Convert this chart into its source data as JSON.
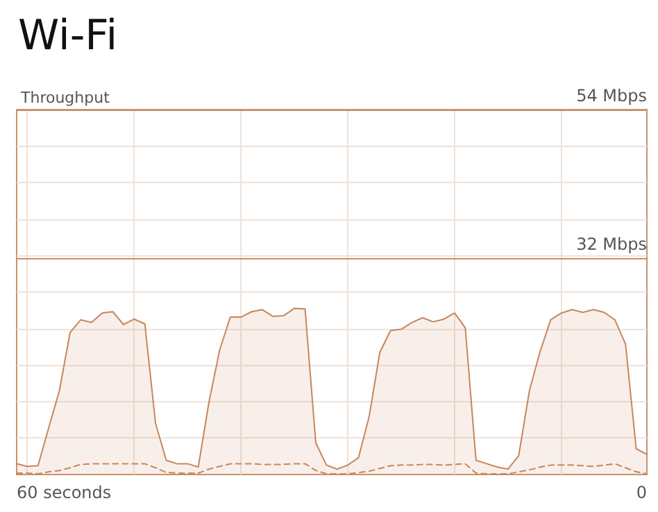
{
  "chart_data": {
    "type": "area",
    "title": "Wi-Fi",
    "ylabel": "Throughput",
    "annotations": [
      "60 seconds",
      "0"
    ],
    "categories": [
      null,
      null,
      null,
      null,
      null,
      null,
      null,
      null,
      null,
      null,
      null,
      null,
      null,
      null,
      null,
      null,
      null,
      null,
      null,
      null,
      null,
      null,
      null,
      null,
      null,
      null,
      null,
      null,
      null,
      null,
      null,
      null,
      null,
      null,
      null,
      null,
      null,
      null,
      null,
      null,
      null,
      null,
      null,
      null,
      null,
      null,
      null,
      null,
      null,
      null,
      null,
      null,
      null,
      null,
      null,
      null,
      null,
      null,
      null,
      null
    ],
    "ylim": [
      0,
      54
    ],
    "yticks": [
      {
        "value": 5.4,
        "label": null
      },
      {
        "value": 10.8,
        "label": null
      },
      {
        "value": 16.2,
        "label": null
      },
      {
        "value": 21.6,
        "label": null
      },
      {
        "value": 27,
        "label": null
      },
      {
        "value": 32.4,
        "label": null
      },
      {
        "value": 37.8,
        "label": null
      },
      {
        "value": 43.2,
        "label": null
      },
      {
        "value": 48.6,
        "label": null
      }
    ],
    "ref_lines": [
      {
        "axis": "y",
        "value": 54,
        "label": "54 Mbps",
        "color": "#c9926a"
      },
      {
        "axis": "y",
        "value": 32,
        "label": "32 Mbps",
        "color": "#c9926a"
      }
    ],
    "grid": true,
    "marker": "none",
    "series": [
      {
        "color": "#c8865c",
        "line_style": "solid",
        "values": [
          1.6,
          1.2,
          1.3,
          6.9,
          12.4,
          21.0,
          22.9,
          22.5,
          23.9,
          24.1,
          22.2,
          23.0,
          22.3,
          7.6,
          2.1,
          1.6,
          1.6,
          1.1,
          10.7,
          18.4,
          23.3,
          23.3,
          24.1,
          24.4,
          23.4,
          23.5,
          24.6,
          24.5,
          4.7,
          1.4,
          0.8,
          1.4,
          2.5,
          8.6,
          18.1,
          21.3,
          21.5,
          22.5,
          23.2,
          22.6,
          23.0,
          23.9,
          21.7,
          2.1,
          1.6,
          1.1,
          0.8,
          2.8,
          12.4,
          18.2,
          22.9,
          23.9,
          24.4,
          24.0,
          24.4,
          24.0,
          22.9,
          19.3,
          3.8,
          3.0
        ]
      },
      {
        "type": "line",
        "color": "#c8865c",
        "line_style": "dashed",
        "values": [
          0.2,
          0.2,
          0.1,
          0.4,
          0.6,
          1.0,
          1.5,
          1.6,
          1.6,
          1.6,
          1.6,
          1.6,
          1.6,
          1.0,
          0.3,
          0.2,
          0.2,
          0.2,
          0.8,
          1.2,
          1.6,
          1.6,
          1.6,
          1.5,
          1.5,
          1.5,
          1.6,
          1.6,
          0.6,
          0.1,
          0.1,
          0.1,
          0.3,
          0.5,
          0.9,
          1.3,
          1.4,
          1.4,
          1.5,
          1.5,
          1.4,
          1.5,
          1.6,
          0.2,
          0.1,
          0.1,
          0.1,
          0.4,
          0.7,
          1.1,
          1.4,
          1.4,
          1.4,
          1.3,
          1.2,
          1.4,
          1.6,
          1.0,
          0.4,
          0.1
        ]
      }
    ]
  }
}
